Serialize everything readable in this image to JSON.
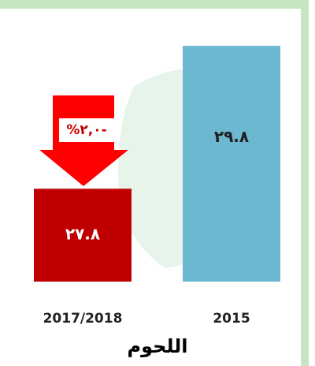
{
  "chart_data": {
    "type": "bar",
    "title": "اللحوم",
    "categories": [
      "2017/2018",
      "2015"
    ],
    "values": [
      27.8,
      29.8
    ],
    "value_labels": [
      "٢٧.٨",
      "٢٩.٨"
    ],
    "colors": [
      "#c00000",
      "#6bb8d0"
    ],
    "ylim": [
      26.5,
      30
    ],
    "annotation": "%٢,٠-"
  }
}
